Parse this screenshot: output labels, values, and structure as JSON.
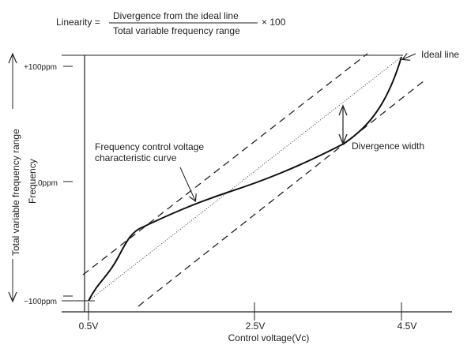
{
  "formula": {
    "lhs": "Linearity =",
    "numerator": "Divergence from the ideal line",
    "denominator": "Total variable frequency range",
    "multiplier": "× 100"
  },
  "axes": {
    "x_label": "Control voltage(Vc)",
    "y_label": "Frequency",
    "y_range_label": "Total variable frequency range",
    "x_ticks": [
      "0.5V",
      "2.5V",
      "4.5V"
    ],
    "y_ticks": [
      "+100ppm",
      "0ppm",
      "−100ppm"
    ]
  },
  "annotations": {
    "ideal_line": "Ideal line",
    "curve_line1": "Frequency control voltage",
    "curve_line2": "characteristic curve",
    "divergence_width": "Divergence width"
  },
  "chart_data": {
    "type": "line",
    "xlabel": "Control voltage(Vc)",
    "ylabel": "Frequency",
    "x_ticks": [
      "0.5V",
      "2.5V",
      "4.5V"
    ],
    "y_ticks": [
      "+100ppm",
      "0ppm",
      "−100ppm"
    ],
    "xlim": [
      0.5,
      4.5
    ],
    "ylim": [
      -100,
      100
    ],
    "series": [
      {
        "name": "Ideal line",
        "style": "dotted",
        "x": [
          0.5,
          4.5
        ],
        "y": [
          -100,
          100
        ]
      },
      {
        "name": "Frequency control voltage characteristic curve",
        "style": "solid",
        "x": [
          0.5,
          0.7,
          1.1,
          1.5,
          2.0,
          2.5,
          3.0,
          3.5,
          3.8,
          4.2,
          4.5
        ],
        "y": [
          -100,
          -82,
          -46,
          -26,
          -13,
          -3,
          6,
          20,
          28,
          55,
          100
        ]
      }
    ]
  },
  "colors": {
    "ink": "#222222"
  }
}
